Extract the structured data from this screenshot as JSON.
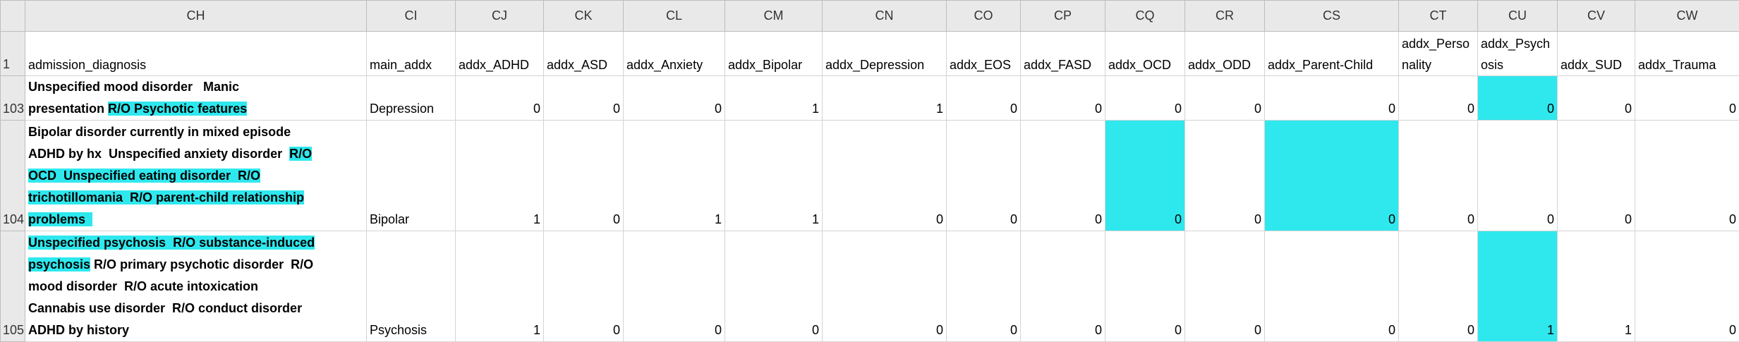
{
  "sheet": {
    "columns": [
      "CH",
      "CI",
      "CJ",
      "CK",
      "CL",
      "CM",
      "CN",
      "CO",
      "CP",
      "CQ",
      "CR",
      "CS",
      "CT",
      "CU",
      "CV",
      "CW"
    ],
    "highlight_color": "#2ee8ee",
    "rows": [
      {
        "number": "1",
        "cells": [
          "admission_diagnosis",
          "main_addx",
          "addx_ADHD",
          "addx_ASD",
          "addx_Anxiety",
          "addx_Bipolar",
          "addx_Depression",
          "addx_EOS",
          "addx_FASD",
          "addx_OCD",
          "addx_ODD",
          "addx_Parent-Child",
          "addx_Personality",
          "addx_Psychosis",
          "addx_SUD",
          "addx_Trauma"
        ],
        "highlighted_cells": []
      },
      {
        "number": "103",
        "cells": [
          [
            {
              "text": "Unspecified mood disorder   Manic\npresentation ",
              "highlight": false
            },
            {
              "text": "R/O Psychotic features",
              "highlight": true
            }
          ],
          "Depression",
          0,
          0,
          0,
          1,
          1,
          0,
          0,
          0,
          0,
          0,
          0,
          0,
          0,
          0
        ],
        "highlighted_cells": [
          13
        ]
      },
      {
        "number": "104",
        "cells": [
          [
            {
              "text": "Bipolar disorder currently in mixed episode\nADHD by hx  Unspecified anxiety disorder  ",
              "highlight": false
            },
            {
              "text": "R/O\nOCD  Unspecified eating disorder  R/O\ntrichotillomania  R/O parent-child relationship\nproblems  ",
              "highlight": true
            }
          ],
          "Bipolar",
          1,
          0,
          1,
          1,
          0,
          0,
          0,
          0,
          0,
          0,
          0,
          0,
          0,
          0
        ],
        "highlighted_cells": [
          9,
          11
        ]
      },
      {
        "number": "105",
        "cells": [
          [
            {
              "text": "Unspecified psychosis  R/O substance-induced\npsychosis",
              "highlight": true
            },
            {
              "text": " R/O primary psychotic disorder  R/O\nmood disorder  R/O acute intoxication\nCannabis use disorder  R/O conduct disorder\nADHD by history",
              "highlight": false
            }
          ],
          "Psychosis",
          1,
          0,
          0,
          0,
          0,
          0,
          0,
          0,
          0,
          0,
          0,
          1,
          1,
          0
        ],
        "highlighted_cells": [
          13
        ]
      }
    ]
  }
}
